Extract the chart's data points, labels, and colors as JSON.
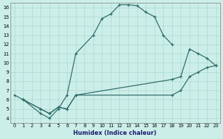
{
  "xlabel": "Humidex (Indice chaleur)",
  "ylabel": "",
  "xlim": [
    -0.5,
    23.5
  ],
  "ylim": [
    3.5,
    16.5
  ],
  "xticks": [
    0,
    1,
    2,
    3,
    4,
    5,
    6,
    7,
    8,
    9,
    10,
    11,
    12,
    13,
    14,
    15,
    16,
    17,
    18,
    19,
    20,
    21,
    22,
    23
  ],
  "yticks": [
    4,
    5,
    6,
    7,
    8,
    9,
    10,
    11,
    12,
    13,
    14,
    15,
    16
  ],
  "color": "#2d6b6b",
  "bg_color": "#cceee8",
  "line1_x": [
    0,
    1,
    3,
    4,
    5,
    6,
    7,
    9,
    10,
    11,
    12,
    13,
    14,
    15,
    16,
    17,
    18
  ],
  "line1_y": [
    6.5,
    6.0,
    4.5,
    4.0,
    5.0,
    6.5,
    11.0,
    13.0,
    14.8,
    15.3,
    16.3,
    16.3,
    16.2,
    15.5,
    15.0,
    13.0,
    12.0
  ],
  "line2_x": [
    1,
    3,
    4,
    5,
    6,
    7,
    18,
    19,
    20,
    21,
    22,
    23
  ],
  "line2_y": [
    6.0,
    5.0,
    4.5,
    5.2,
    5.0,
    6.5,
    8.2,
    8.5,
    11.5,
    11.0,
    10.5,
    9.7
  ],
  "line3_x": [
    1,
    3,
    4,
    5,
    6,
    7,
    18,
    19,
    20,
    21,
    22,
    23
  ],
  "line3_y": [
    6.0,
    5.0,
    4.5,
    5.2,
    5.0,
    6.5,
    6.5,
    7.0,
    8.5,
    9.0,
    9.5,
    9.7
  ]
}
